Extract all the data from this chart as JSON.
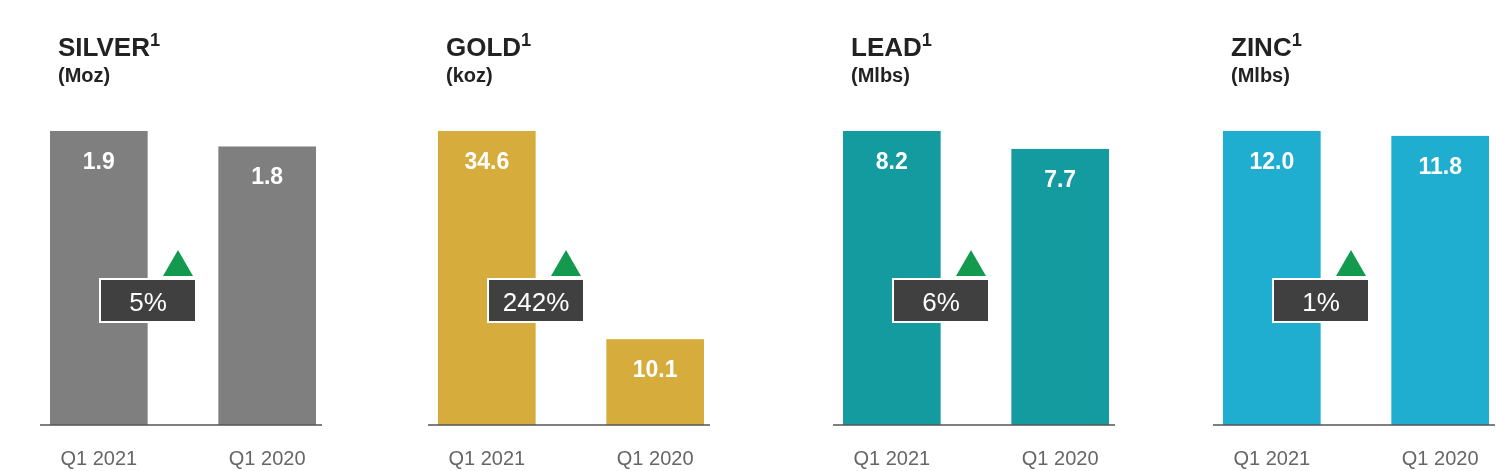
{
  "chart_data": [
    {
      "type": "bar",
      "title": "SILVER$^{1}$",
      "subtitle": "(Moz)",
      "categories": [
        "Q1 2021",
        "Q1 2020"
      ],
      "values": [
        1.9,
        1.8
      ],
      "color": "#7f7f7f",
      "value_labels": [
        "1.9",
        "1.8"
      ],
      "annotations": [
        "5%"
      ]
    },
    {
      "type": "bar",
      "title": "GOLD$^{1}$",
      "subtitle": "(koz)",
      "categories": [
        "Q1 2021",
        "Q1 2020"
      ],
      "values": [
        34.6,
        10.1
      ],
      "color": "#d6ad3d",
      "value_labels": [
        "34.6",
        "10.1"
      ],
      "annotations": [
        "242%"
      ]
    },
    {
      "type": "bar",
      "title": "LEAD$^{1}$",
      "subtitle": "(Mlbs)",
      "categories": [
        "Q1 2021",
        "Q1 2020"
      ],
      "values": [
        8.2,
        7.7
      ],
      "color": "#139ba0",
      "value_labels": [
        "8.2",
        "7.7"
      ],
      "annotations": [
        "6%"
      ]
    },
    {
      "type": "bar",
      "title": "ZINC$^{1}$",
      "subtitle": "(Mlbs)",
      "categories": [
        "Q1 2021",
        "Q1 2020"
      ],
      "values": [
        12.0,
        11.8
      ],
      "color": "#20aed0",
      "value_labels": [
        "12.0",
        "11.8"
      ],
      "annotations": [
        "1%"
      ]
    }
  ]
}
